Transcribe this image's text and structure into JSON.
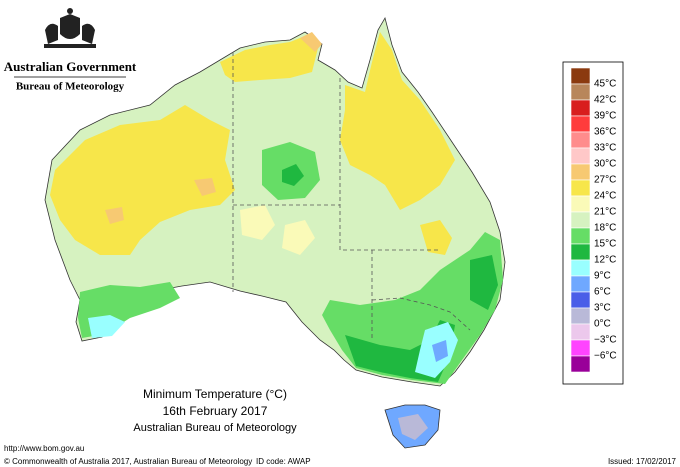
{
  "header": {
    "government": "Australian Government",
    "agency": "Bureau of Meteorology"
  },
  "map": {
    "title": "Minimum Temperature (°C)",
    "date": "16th February 2017",
    "source": "Australian Bureau of Meteorology"
  },
  "legend": {
    "colors": [
      "#8b3a0f",
      "#b8865b",
      "#d81e1e",
      "#ff3c3c",
      "#ff8c8c",
      "#ffc8c8",
      "#f7c972",
      "#f7e64a",
      "#fafab8",
      "#d6f2c0",
      "#66dd66",
      "#1fb840",
      "#99ffff",
      "#6fa8ff",
      "#4a5ee8",
      "#b9b9d8",
      "#ecc8ec",
      "#ff44ff",
      "#990099"
    ],
    "labels": [
      "45°C",
      "42°C",
      "39°C",
      "36°C",
      "33°C",
      "30°C",
      "27°C",
      "24°C",
      "21°C",
      "18°C",
      "15°C",
      "12°C",
      "9°C",
      "6°C",
      "3°C",
      "0°C",
      "−3°C",
      "−6°C"
    ]
  },
  "footer": {
    "url": "http://www.bom.gov.au",
    "copyright": "© Commonwealth of Australia 2017, Australian Bureau of Meteorology",
    "id_code": "ID code: AWAP",
    "issued": "Issued: 17/02/2017"
  }
}
